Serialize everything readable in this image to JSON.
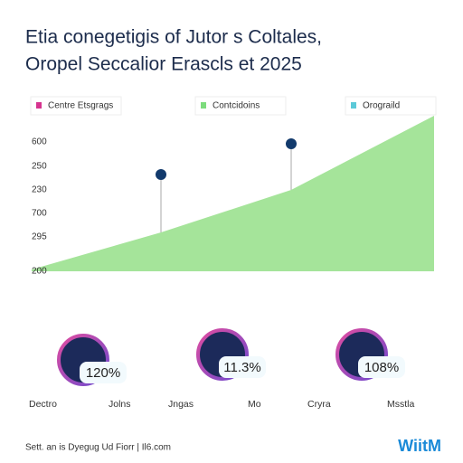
{
  "header": {
    "title_line1": "Etia conegetigis of Jutor s Coltales,",
    "title_line2": "Oropel Seccalior Erascls et 2025"
  },
  "legend": [
    {
      "label": "Centre Etsgrags",
      "color": "#d6338f"
    },
    {
      "label": "Contcidoins",
      "color": "#7ddc7d"
    },
    {
      "label": "Orograild",
      "color": "#5cc9d8"
    }
  ],
  "axis_labels": [
    "600",
    "250",
    "230",
    "700",
    "295",
    "200"
  ],
  "stats": [
    {
      "value": "120%",
      "left": "Dectro",
      "right": "Jolns"
    },
    {
      "value": "11.3%",
      "left": "Jngas",
      "right": "Mo"
    },
    {
      "value": "108%",
      "left": "Cryra",
      "right": "Msstla"
    }
  ],
  "footer": {
    "text": "Sett. an is Dyegug Ud Fiorr | Il6.com",
    "logo": "WiitM"
  }
}
